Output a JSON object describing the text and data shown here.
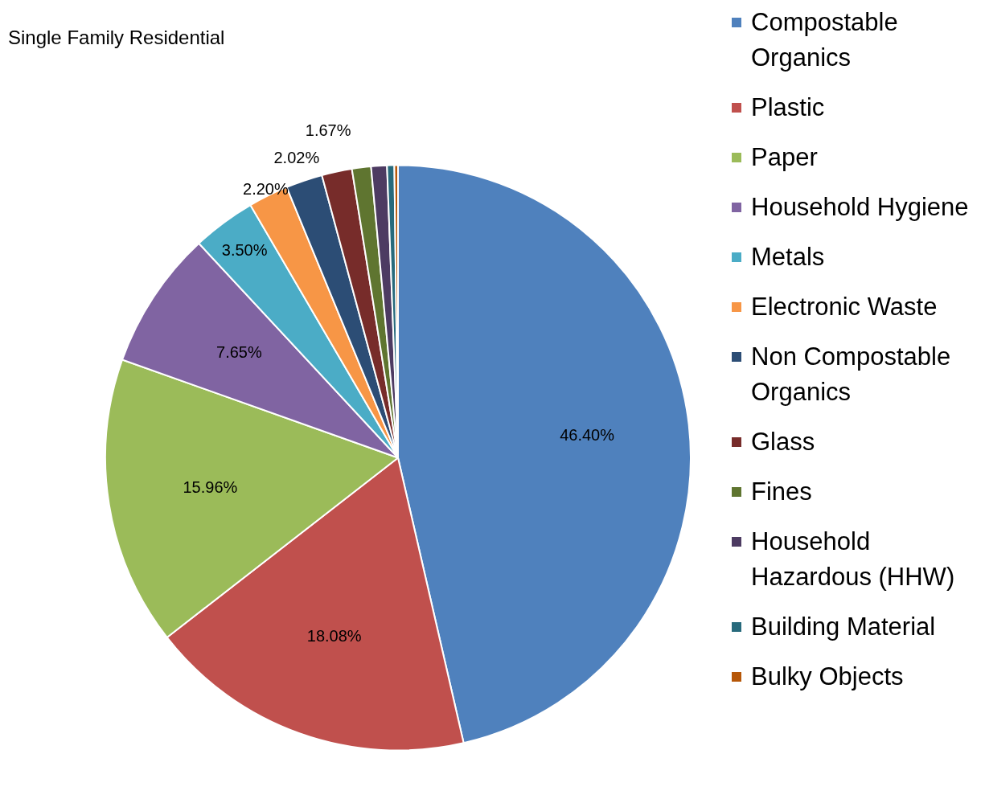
{
  "chart_data": {
    "type": "pie",
    "title": "Single Family Residential",
    "categories": [
      "Compostable Organics",
      "Plastic",
      "Paper",
      "Household Hygiene",
      "Metals",
      "Electronic Waste",
      "Non Compostable Organics",
      "Glass",
      "Fines",
      "Household Hazardous (HHW)",
      "Building Material",
      "Bulky Objects"
    ],
    "values": [
      46.4,
      18.08,
      15.96,
      7.65,
      3.5,
      2.2,
      2.02,
      1.67,
      1.05,
      0.87,
      0.4,
      0.2
    ],
    "colors": [
      "#4f81bd",
      "#c0504d",
      "#9bbb59",
      "#8064a2",
      "#4bacc6",
      "#f79646",
      "#2c4d75",
      "#772c2a",
      "#5f7530",
      "#4d3b62",
      "#276a7c",
      "#b65708"
    ],
    "value_labels": [
      "46.40%",
      "18.08%",
      "15.96%",
      "7.65%",
      "3.50%",
      "2.20%",
      "2.02%",
      "1.67%",
      null,
      null,
      null,
      null
    ],
    "legend": "right"
  }
}
